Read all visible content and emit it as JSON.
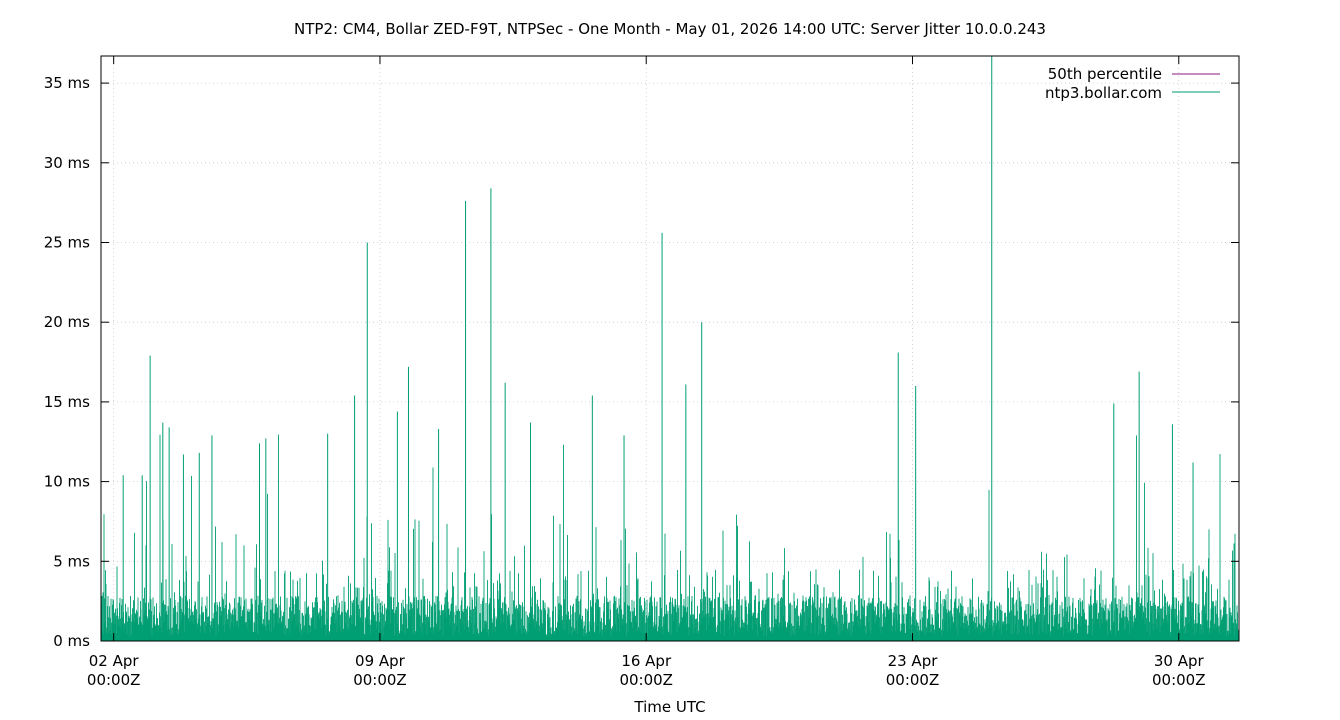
{
  "chart_data": {
    "type": "line",
    "title": "NTP2: CM4, Bollar ZED-F9T, NTPSec - One Month - May 01, 2026 14:00 UTC: Server Jitter 10.0.0.243",
    "xlabel": "Time UTC",
    "ylabel": "",
    "x_range": [
      "2026-04-01T16:00Z",
      "2026-05-01T14:00Z"
    ],
    "ylim": [
      0,
      36.7
    ],
    "y_unit": "ms",
    "grid": true,
    "legend_position": "top-right",
    "y_ticks": [
      {
        "value": 0,
        "label": "0 ms"
      },
      {
        "value": 5,
        "label": "5 ms"
      },
      {
        "value": 10,
        "label": "10 ms"
      },
      {
        "value": 15,
        "label": "15 ms"
      },
      {
        "value": 20,
        "label": "20 ms"
      },
      {
        "value": 25,
        "label": "25 ms"
      },
      {
        "value": 30,
        "label": "30 ms"
      },
      {
        "value": 35,
        "label": "35 ms"
      }
    ],
    "x_ticks": [
      {
        "value": "2026-04-02T00:00Z",
        "line1": "02 Apr",
        "line2": "00:00Z"
      },
      {
        "value": "2026-04-09T00:00Z",
        "line1": "09 Apr",
        "line2": "00:00Z"
      },
      {
        "value": "2026-04-16T00:00Z",
        "line1": "16 Apr",
        "line2": "00:00Z"
      },
      {
        "value": "2026-04-23T00:00Z",
        "line1": "23 Apr",
        "line2": "00:00Z"
      },
      {
        "value": "2026-04-30T00:00Z",
        "line1": "30 Apr",
        "line2": "00:00Z"
      }
    ],
    "series": [
      {
        "name": "50th percentile",
        "color": "#8b1a89",
        "baseline_level": 2.3,
        "values": []
      },
      {
        "name": "ntp3.bollar.com",
        "color": "#009e73",
        "baseline_level": 2.3,
        "spikes": [
          {
            "x": "2026-04-02T06:00Z",
            "y": 10.4
          },
          {
            "x": "2026-04-02T18:00Z",
            "y": 10.4
          },
          {
            "x": "2026-04-02T23:00Z",
            "y": 17.9
          },
          {
            "x": "2026-04-03T07:00Z",
            "y": 13.7
          },
          {
            "x": "2026-04-03T11:00Z",
            "y": 13.4
          },
          {
            "x": "2026-04-03T20:00Z",
            "y": 11.7
          },
          {
            "x": "2026-04-04T06:00Z",
            "y": 11.8
          },
          {
            "x": "2026-04-04T14:00Z",
            "y": 12.9
          },
          {
            "x": "2026-04-05T20:00Z",
            "y": 12.4
          },
          {
            "x": "2026-04-06T00:00Z",
            "y": 12.7
          },
          {
            "x": "2026-04-07T15:00Z",
            "y": 13.0
          },
          {
            "x": "2026-04-08T08:00Z",
            "y": 15.4
          },
          {
            "x": "2026-04-08T16:00Z",
            "y": 25.0
          },
          {
            "x": "2026-04-09T11:00Z",
            "y": 14.4
          },
          {
            "x": "2026-04-09T18:00Z",
            "y": 17.2
          },
          {
            "x": "2026-04-10T13:00Z",
            "y": 13.3
          },
          {
            "x": "2026-04-11T06:00Z",
            "y": 27.6
          },
          {
            "x": "2026-04-11T22:00Z",
            "y": 28.4
          },
          {
            "x": "2026-04-12T07:00Z",
            "y": 16.2
          },
          {
            "x": "2026-04-12T23:00Z",
            "y": 13.7
          },
          {
            "x": "2026-04-14T14:00Z",
            "y": 15.4
          },
          {
            "x": "2026-04-15T10:00Z",
            "y": 12.9
          },
          {
            "x": "2026-04-16T10:00Z",
            "y": 25.6
          },
          {
            "x": "2026-04-17T01:00Z",
            "y": 16.1
          },
          {
            "x": "2026-04-17T11:00Z",
            "y": 20.0
          },
          {
            "x": "2026-04-22T15:00Z",
            "y": 18.1
          },
          {
            "x": "2026-04-23T02:00Z",
            "y": 16.0
          },
          {
            "x": "2026-04-25T02:00Z",
            "y": 36.7
          },
          {
            "x": "2026-04-28T07:00Z",
            "y": 14.9
          },
          {
            "x": "2026-04-28T23:00Z",
            "y": 16.9
          },
          {
            "x": "2026-04-29T20:00Z",
            "y": 13.6
          },
          {
            "x": "2026-04-30T09:00Z",
            "y": 11.2
          }
        ]
      }
    ]
  }
}
